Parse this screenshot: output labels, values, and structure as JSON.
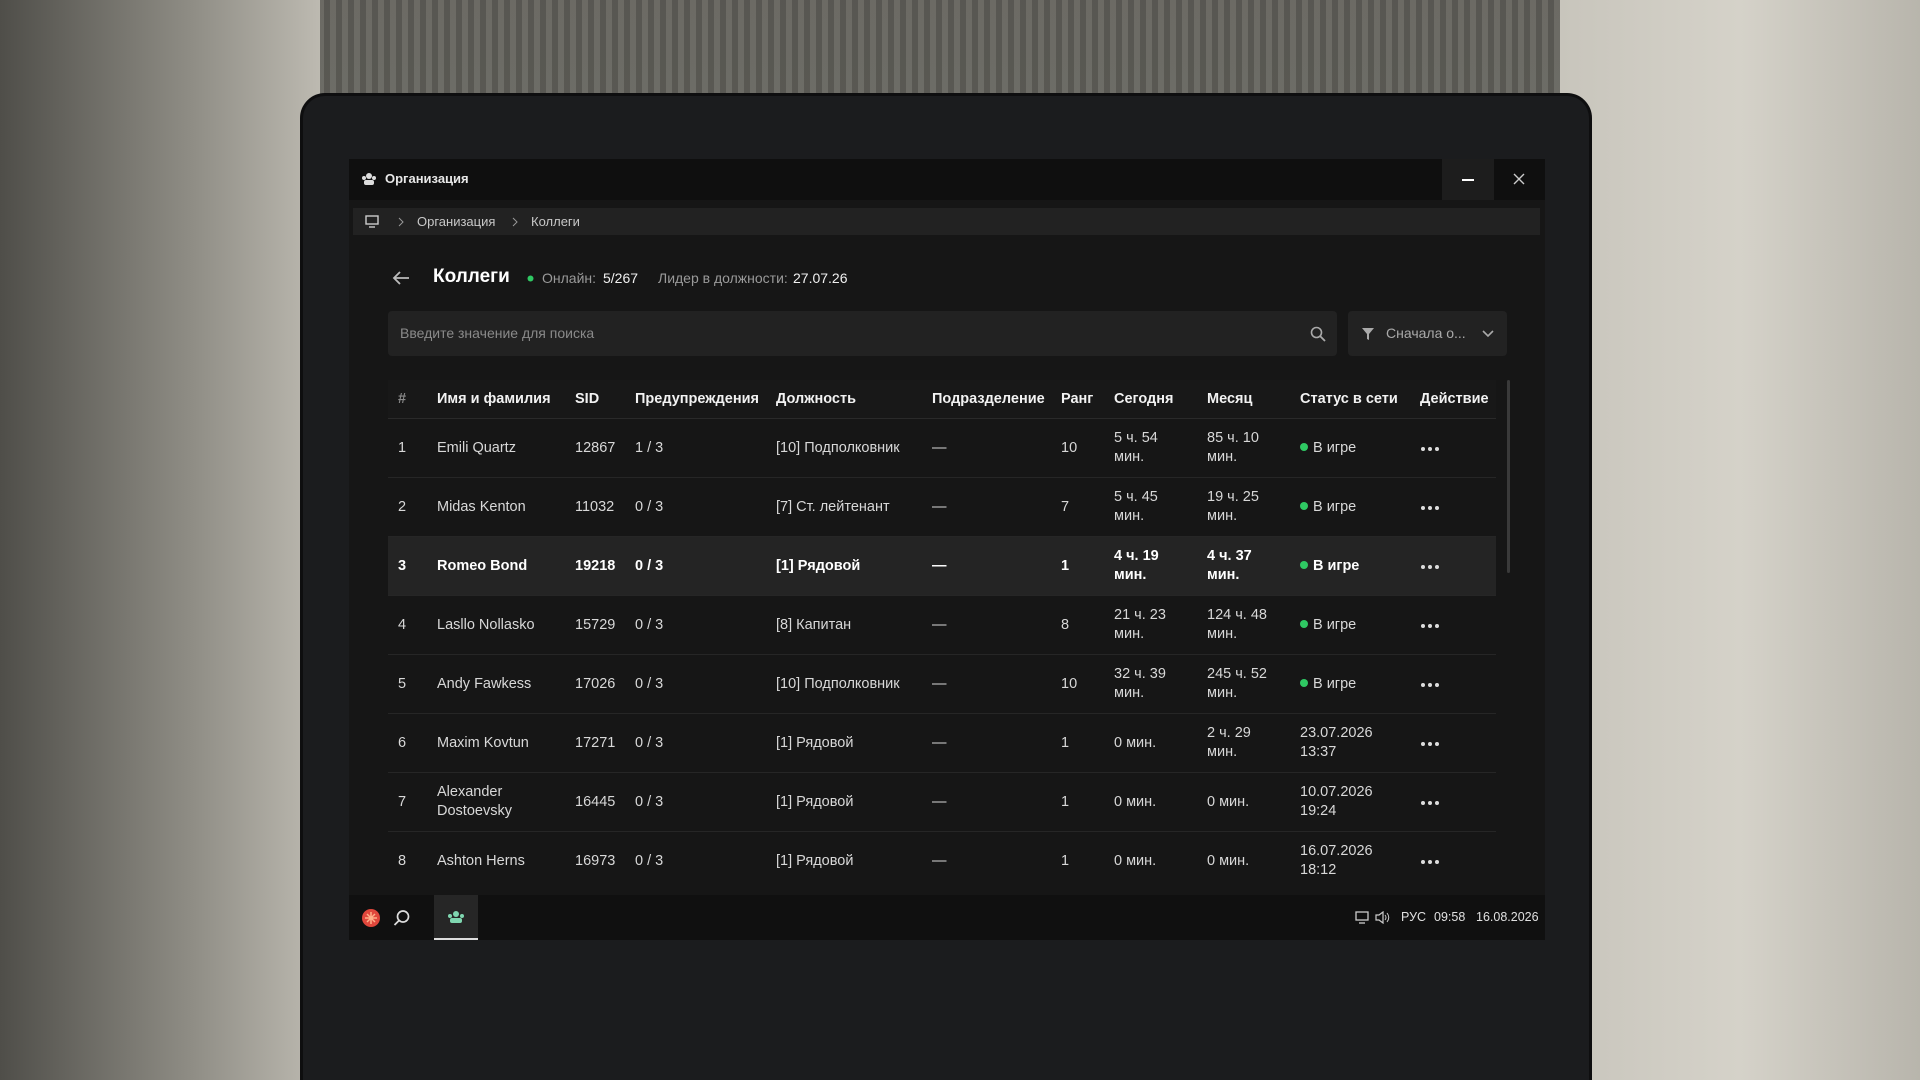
{
  "window": {
    "title": "Организация"
  },
  "breadcrumb": {
    "items": [
      "Организация",
      "Коллеги"
    ]
  },
  "header": {
    "title": "Коллеги",
    "online_label": "Онлайн:",
    "online_value": "5/267",
    "leader_label": "Лидер в должности:",
    "leader_value": "27.07.26"
  },
  "search": {
    "placeholder": "Введите значение для поиска"
  },
  "sort": {
    "label": "Сначала о..."
  },
  "table": {
    "columns": [
      "#",
      "Имя и фамилия",
      "SID",
      "Предупреждения",
      "Должность",
      "Подразделение",
      "Ранг",
      "Сегодня",
      "Месяц",
      "Статус в сети",
      "Действие"
    ],
    "rows": [
      [
        "1",
        "Emili Quartz",
        "12867",
        "1 / 3",
        "[10] Подполковник",
        "—",
        "10",
        "5 ч. 54 мин.",
        "85 ч. 10 мин.",
        "В игре"
      ],
      [
        "2",
        "Midas Kenton",
        "11032",
        "0 / 3",
        "[7] Ст. лейтенант",
        "—",
        "7",
        "5 ч. 45 мин.",
        "19 ч. 25 мин.",
        "В игре"
      ],
      [
        "3",
        "Romeo Bond",
        "19218",
        "0 / 3",
        "[1] Рядовой",
        "—",
        "1",
        "4 ч. 19 мин.",
        "4 ч. 37 мин.",
        "В игре"
      ],
      [
        "4",
        "Lasllo Nollasko",
        "15729",
        "0 / 3",
        "[8] Капитан",
        "—",
        "8",
        "21 ч. 23 мин.",
        "124 ч. 48 мин.",
        "В игре"
      ],
      [
        "5",
        "Andy Fawkess",
        "17026",
        "0 / 3",
        "[10] Подполковник",
        "—",
        "10",
        "32 ч. 39 мин.",
        "245 ч. 52 мин.",
        "В игре"
      ],
      [
        "6",
        "Maxim Kovtun",
        "17271",
        "0 / 3",
        "[1] Рядовой",
        "—",
        "1",
        "0 мин.",
        "2 ч. 29 мин.",
        "23.07.2026 13:37"
      ],
      [
        "7",
        "Alexander Dostoevsky",
        "16445",
        "0 / 3",
        "[1] Рядовой",
        "—",
        "1",
        "0 мин.",
        "0 мин.",
        "10.07.2026 19:24"
      ],
      [
        "8",
        "Ashton Herns",
        "16973",
        "0 / 3",
        "[1] Рядовой",
        "—",
        "1",
        "0 мин.",
        "0 мин.",
        "16.07.2026 18:12"
      ]
    ]
  },
  "taskbar": {
    "language": "РУС",
    "time": "09:58",
    "date": "16.08.2026"
  }
}
